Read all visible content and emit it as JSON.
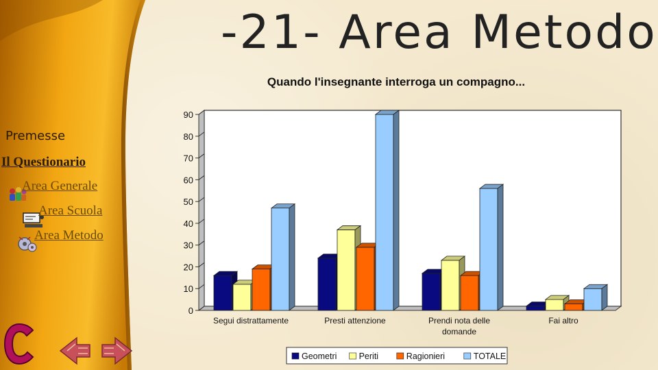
{
  "slide": {
    "title": "-21- Area Metodo"
  },
  "nav": {
    "premesse": "Premesse",
    "questionario": "Il Questionario",
    "area_generale": "Area Generale",
    "area_scuola": "Area Scuola",
    "area_metodo": "Area Metodo"
  },
  "colors": {
    "sidebar_dark": "#b56a00",
    "sidebar_light": "#f7b21a",
    "geometri": "#0a0a80",
    "periti": "#ffff99",
    "ragionieri": "#ff6600",
    "totale": "#99ccff",
    "logo": "#b0105a"
  },
  "chart_data": {
    "type": "bar",
    "title": "Quando l'insegnante interroga un compagno...",
    "categories": [
      "Segui distrattamente",
      "Presti attenzione",
      "Prendi nota delle domande",
      "Fai altro"
    ],
    "series": [
      {
        "name": "Geometri",
        "values": [
          16,
          24,
          17,
          2
        ]
      },
      {
        "name": "Periti",
        "values": [
          12,
          37,
          23,
          5
        ]
      },
      {
        "name": "Ragionieri",
        "values": [
          19,
          29,
          16,
          3
        ]
      },
      {
        "name": "TOTALE",
        "values": [
          47,
          90,
          56,
          10
        ]
      }
    ],
    "ylim": [
      0,
      90
    ],
    "yticks": [
      0,
      10,
      20,
      30,
      40,
      50,
      60,
      70,
      80,
      90
    ],
    "xlabel": "",
    "ylabel": "",
    "grid": false,
    "legend_position": "bottom",
    "style": "3d-bar"
  }
}
